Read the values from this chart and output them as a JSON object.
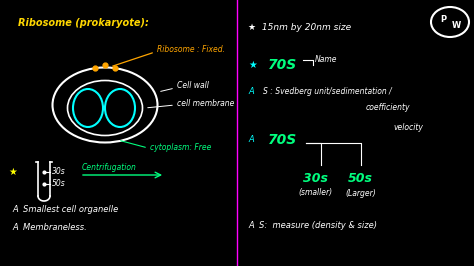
{
  "bg_color": "#000000",
  "title_color": "#FFD700",
  "orange_color": "#FFA500",
  "green_color": "#00FF7F",
  "white_color": "#FFFFFF",
  "cyan_color": "#00FFFF",
  "yellow_color": "#FFFF00",
  "magenta_color": "#FF00FF",
  "title": "Ribosome (prokaryote):",
  "ribosome_label": "Ribosome : Fixed.",
  "cell_wall_label": "Cell wall",
  "cell_membrane_label": "cell membrane",
  "cytoplasm_label": "cytoplasm: Free",
  "centrifugation_label": "Centrifugation",
  "smallest_label": "A  Smallest cell organelle",
  "membraneless_label": "A  Membraneless.",
  "30s_label": "30s",
  "50s_label": "50s",
  "right_star1": "★  15nm by 20nm size",
  "right_star2_label": "★",
  "right_70s_name": "70S",
  "right_name_label": "Name",
  "right_star3_label": "A",
  "right_s_label": "S : Svedberg unit/sedimentation /",
  "right_coefficienty": "coefficienty",
  "right_velocity": "velocity",
  "right_star4_label": "A",
  "right_70s2": "70S",
  "right_30s": "30s",
  "right_30s_sub": "(smaller)",
  "right_50s": "50s",
  "right_50s_sub": "(Larger)",
  "right_s_measure": "A  S:  measure (density & size)"
}
